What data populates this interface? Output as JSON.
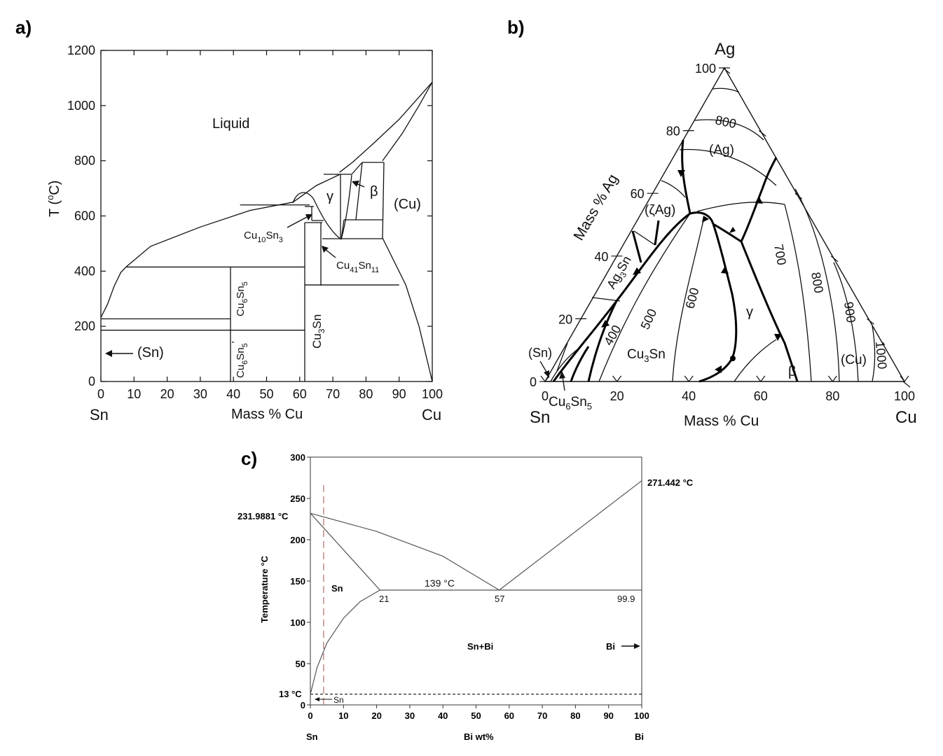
{
  "panels": {
    "a": {
      "label": "a)"
    },
    "b": {
      "label": "b)"
    },
    "c": {
      "label": "c)"
    }
  },
  "chart_data": [
    {
      "type": "line",
      "panel": "a",
      "xlabel": "Mass % Cu",
      "ylabel": "T (°C)",
      "ylabel_parts": [
        "T (",
        "o",
        "C)"
      ],
      "x_end_labels": {
        "left": "Sn",
        "right": "Cu"
      },
      "xlim": [
        0,
        100
      ],
      "ylim": [
        0,
        1200
      ],
      "x_ticks": [
        0,
        10,
        20,
        30,
        40,
        50,
        60,
        70,
        80,
        90,
        100
      ],
      "y_ticks": [
        0,
        200,
        400,
        600,
        800,
        1000,
        1200
      ],
      "regions": {
        "liquid": "Liquid",
        "gamma": "γ",
        "beta": "β",
        "cu": "(Cu)",
        "sn": "(Sn)",
        "cu10sn3": [
          "Cu",
          "10",
          "Sn",
          "3"
        ],
        "cu41sn11": [
          "Cu",
          "41",
          "Sn",
          "11"
        ],
        "cu6sn5": [
          "Cu",
          "6",
          "Sn",
          "5"
        ],
        "cu6sn5p": [
          "Cu",
          "6",
          "Sn",
          "5",
          "'"
        ],
        "cu3sn": [
          "Cu",
          "3",
          "Sn"
        ]
      },
      "series": [
        {
          "values": [
            [
              0,
              232
            ],
            [
              2,
              280
            ],
            [
              4,
              345
            ],
            [
              6,
              395
            ],
            [
              7.6,
              415
            ]
          ]
        },
        {
          "values": [
            [
              7.6,
              415
            ],
            [
              15,
              490
            ],
            [
              30,
              560
            ],
            [
              45,
              620
            ],
            [
              58,
              650
            ]
          ]
        },
        {
          "values": [
            [
              58,
              650
            ],
            [
              65,
              710
            ],
            [
              72,
              750
            ]
          ]
        },
        {
          "values": [
            [
              72,
              758
            ],
            [
              76,
              795
            ],
            [
              82,
              860
            ],
            [
              90,
              950
            ],
            [
              100,
              1085
            ]
          ]
        },
        {
          "values": [
            [
              100,
              1085
            ],
            [
              96,
              1000
            ],
            [
              91,
              900
            ],
            [
              85,
              800
            ]
          ]
        },
        {
          "values": [
            [
              85,
              520
            ],
            [
              92,
              350
            ],
            [
              96,
              200
            ],
            [
              100,
              0
            ]
          ]
        }
      ],
      "isotherms": [
        {
          "t": 227,
          "from": 0,
          "to": 39
        },
        {
          "t": 186,
          "from": 0,
          "to": 61.5
        },
        {
          "t": 415,
          "from": 7.6,
          "to": 61.5
        },
        {
          "t": 640,
          "from": 42,
          "to": 63
        },
        {
          "t": 350,
          "from": 61.5,
          "to": 90
        }
      ]
    },
    {
      "type": "table",
      "panel": "b",
      "diagram": "ternary",
      "corner_labels": {
        "top": "Ag",
        "left": "Sn",
        "right": "Cu"
      },
      "xlabel": "Mass % Cu",
      "ylabel": "Mass % Ag",
      "bottom_ticks": [
        0,
        20,
        40,
        60,
        80,
        100
      ],
      "left_ticks": [
        0,
        20,
        40,
        60,
        80,
        100
      ],
      "isotherm_labels": [
        "800",
        "700",
        "800",
        "900",
        "1000",
        "600",
        "500",
        "400"
      ],
      "phase_labels": {
        "ag": "(Ag)",
        "zeta": "(ζAg)",
        "ag3sn": [
          "Ag",
          "3",
          "Sn"
        ],
        "cu3sn": [
          "Cu",
          "3",
          "Sn"
        ],
        "gamma": "γ",
        "beta": "β",
        "cu": "(Cu)",
        "sn": "(Sn)",
        "cu6sn5": [
          "Cu",
          "6",
          "Sn",
          "5"
        ]
      }
    },
    {
      "type": "line",
      "panel": "c",
      "xlabel": "Bi wt%",
      "ylabel": "Temperature °C",
      "x_end_labels": {
        "left": "Sn",
        "right": "Bi"
      },
      "xlim": [
        0,
        100
      ],
      "ylim": [
        0,
        300
      ],
      "x_ticks": [
        0,
        10,
        20,
        30,
        40,
        50,
        60,
        70,
        80,
        90,
        100
      ],
      "y_ticks": [
        0,
        50,
        100,
        150,
        200,
        250,
        300
      ],
      "annotations": {
        "sn_melt": "231.9881 °C",
        "bi_melt": "271.442 °C",
        "eutectic": "139 °C",
        "x21": "21",
        "x57": "57",
        "x999": "99.9",
        "sn_region": "Sn",
        "snbi_region": "Sn+Bi",
        "bi_region": "Bi",
        "low_t": "13 °C",
        "sn_arrow": "Sn"
      },
      "series": [
        {
          "values": [
            [
              0,
              232
            ],
            [
              20,
              210
            ],
            [
              40,
              180
            ],
            [
              57,
              139
            ]
          ]
        },
        {
          "values": [
            [
              57,
              139
            ],
            [
              100,
              271.4
            ]
          ]
        },
        {
          "values": [
            [
              0,
              232
            ],
            [
              21,
              139
            ]
          ]
        },
        {
          "values": [
            [
              0,
              13
            ],
            [
              2,
              45
            ],
            [
              5,
              75
            ],
            [
              10,
              105
            ],
            [
              15,
              125
            ],
            [
              21,
              139
            ]
          ]
        },
        {
          "values": [
            [
              21,
              139
            ],
            [
              100,
              139
            ]
          ]
        },
        {
          "values": [
            [
              0,
              13
            ],
            [
              100,
              13
            ]
          ]
        },
        {
          "values": [
            [
              4,
              0
            ],
            [
              4,
              270
            ]
          ]
        }
      ]
    }
  ]
}
